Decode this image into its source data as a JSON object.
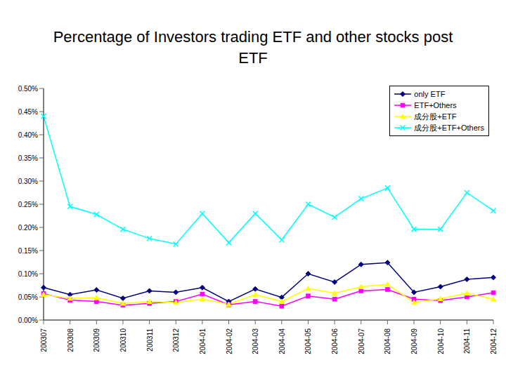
{
  "chart_data": {
    "type": "line",
    "title": "Percentage of Investors trading ETF and other stocks post ETF",
    "categories": [
      "200307",
      "200308",
      "200309",
      "200310",
      "200311",
      "200312",
      "2004-01",
      "2004-02",
      "2004-03",
      "2004-04",
      "2004-05",
      "2004-06",
      "2004-07",
      "2004-08",
      "2004-09",
      "2004-10",
      "2004-11",
      "2004-12"
    ],
    "series": [
      {
        "name": "only ETF",
        "color": "#000080",
        "marker": "diamond",
        "values": [
          0.07,
          0.055,
          0.065,
          0.047,
          0.063,
          0.06,
          0.07,
          0.04,
          0.067,
          0.049,
          0.1,
          0.082,
          0.12,
          0.124,
          0.06,
          0.072,
          0.088,
          0.092
        ]
      },
      {
        "name": "ETF+Others",
        "color": "#FF00FF",
        "marker": "square",
        "values": [
          0.057,
          0.043,
          0.04,
          0.032,
          0.036,
          0.04,
          0.056,
          0.033,
          0.04,
          0.03,
          0.052,
          0.045,
          0.063,
          0.066,
          0.045,
          0.042,
          0.05,
          0.059
        ]
      },
      {
        "name": "成分股+ETF",
        "color": "#FFFF00",
        "marker": "triangle",
        "values": [
          0.055,
          0.047,
          0.048,
          0.036,
          0.04,
          0.038,
          0.045,
          0.034,
          0.055,
          0.04,
          0.068,
          0.058,
          0.072,
          0.077,
          0.038,
          0.046,
          0.058,
          0.045
        ]
      },
      {
        "name": "成分股+ETF+Others",
        "color": "#00FFFF",
        "marker": "x",
        "values": [
          0.44,
          0.245,
          0.228,
          0.196,
          0.176,
          0.164,
          0.23,
          0.167,
          0.23,
          0.173,
          0.25,
          0.222,
          0.262,
          0.285,
          0.196,
          0.196,
          0.275,
          0.236
        ]
      }
    ],
    "ylim": [
      0,
      0.5
    ],
    "yticks": [
      {
        "value": 0,
        "label": "0.00%"
      },
      {
        "value": 0.05,
        "label": "0.05%"
      },
      {
        "value": 0.1,
        "label": "0.10%"
      },
      {
        "value": 0.15,
        "label": "0.15%"
      },
      {
        "value": 0.2,
        "label": "0.20%"
      },
      {
        "value": 0.25,
        "label": "0.25%"
      },
      {
        "value": 0.3,
        "label": "0.30%"
      },
      {
        "value": 0.35,
        "label": "0.35%"
      },
      {
        "value": 0.4,
        "label": "0.40%"
      },
      {
        "value": 0.45,
        "label": "0.45%"
      },
      {
        "value": 0.5,
        "label": "0.50%"
      }
    ],
    "grid": false,
    "legend": "upper right"
  }
}
